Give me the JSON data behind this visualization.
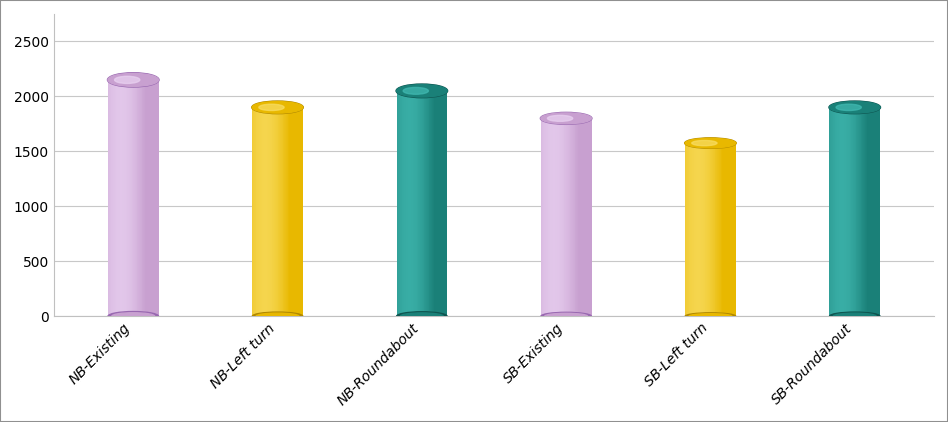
{
  "categories": [
    "NB-Existing",
    "NB-Left turn",
    "NB-Roundabout",
    "SB-Existing",
    "SB-Left turn",
    "SB-Roundabout"
  ],
  "values": [
    2150,
    1900,
    2050,
    1800,
    1575,
    1900
  ],
  "bar_colors_main": [
    "#c8a0d0",
    "#e8b800",
    "#1a8078",
    "#c8a0d0",
    "#e8b800",
    "#1a8078"
  ],
  "bar_colors_light": [
    "#e8d0f0",
    "#f8dc60",
    "#40b8b0",
    "#e8d0f0",
    "#f8dc60",
    "#40b8b0"
  ],
  "bar_colors_dark": [
    "#9868b0",
    "#b08800",
    "#0e5550",
    "#9868b0",
    "#b08800",
    "#0e5550"
  ],
  "ylim": [
    0,
    2750
  ],
  "yticks": [
    0,
    500,
    1000,
    1500,
    2000,
    2500
  ],
  "background_color": "#ffffff",
  "grid_color": "#c8c8c8",
  "bar_width": 0.35,
  "figure_border_color": "#aaaaaa",
  "n_gradient_strips": 60
}
